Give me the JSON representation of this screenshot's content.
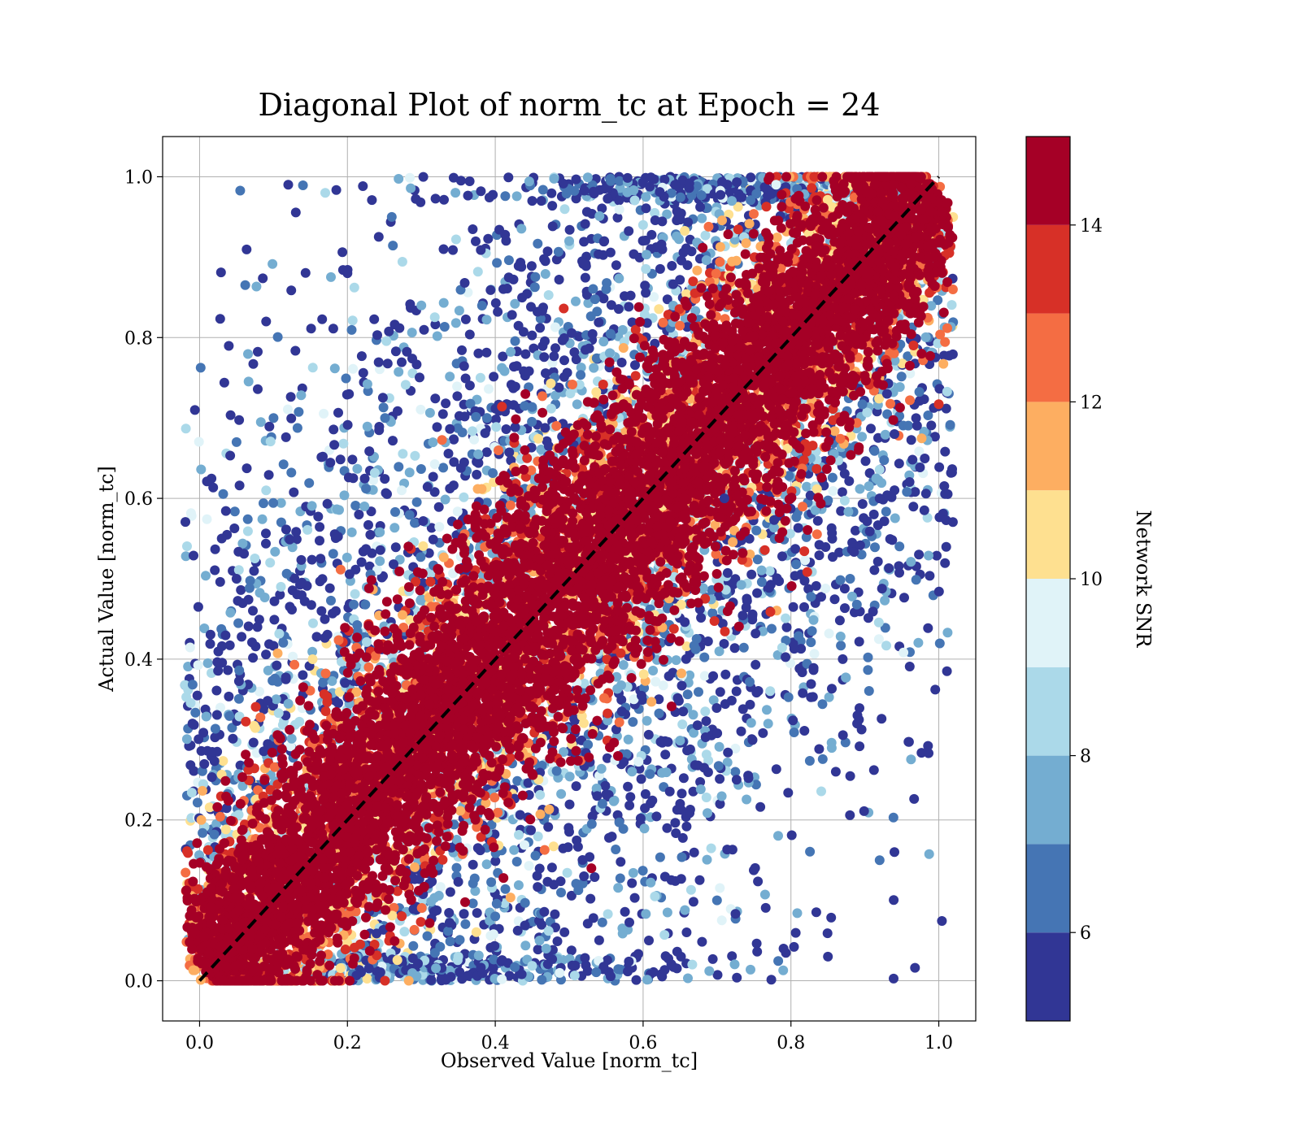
{
  "chart_data": {
    "type": "scatter",
    "title": "Diagonal Plot of norm_tc at Epoch = 24",
    "xlabel": "Observed Value [norm_tc]",
    "ylabel": "Actual Value [norm_tc]",
    "xlim": [
      -0.05,
      1.05
    ],
    "ylim": [
      -0.05,
      1.05
    ],
    "x_ticks": [
      "0.0",
      "0.2",
      "0.4",
      "0.6",
      "0.8",
      "1.0"
    ],
    "y_ticks": [
      "0.0",
      "0.2",
      "0.4",
      "0.6",
      "0.8",
      "1.0"
    ],
    "grid": true,
    "reference_line": {
      "style": "dashed",
      "color": "#000000",
      "points": [
        [
          0.0,
          0.0
        ],
        [
          1.0,
          1.0
        ]
      ]
    },
    "colorbar": {
      "label": "Network SNR",
      "range": [
        5,
        15
      ],
      "ticks": [
        "6",
        "8",
        "10",
        "12",
        "14"
      ],
      "bin_edges": [
        5,
        6,
        7,
        8,
        9,
        10,
        11,
        12,
        13,
        14,
        15
      ],
      "colors": [
        "#313695",
        "#4575b4",
        "#74add1",
        "#abd9e9",
        "#e0f3f8",
        "#fee090",
        "#fdae61",
        "#f46d43",
        "#d73027",
        "#a50026"
      ]
    },
    "description_of_points": {
      "band_center_series": "high SNR points (~15) clustered tightly along y = x",
      "scatter_series": "low SNR points (5–9) spread widely off the diagonal"
    },
    "points_sample": [
      {
        "x": 0.05,
        "y": 0.67,
        "snr": 6
      },
      {
        "x": 0.03,
        "y": 0.55,
        "snr": 5
      },
      {
        "x": 0.05,
        "y": 0.5,
        "snr": 5
      },
      {
        "x": 0.12,
        "y": 0.99,
        "snr": 5
      },
      {
        "x": 0.17,
        "y": 0.98,
        "snr": 8
      },
      {
        "x": 0.09,
        "y": 0.82,
        "snr": 5
      },
      {
        "x": 0.1,
        "y": 0.7,
        "snr": 6
      },
      {
        "x": 0.09,
        "y": 0.61,
        "snr": 8
      },
      {
        "x": 0.11,
        "y": 0.49,
        "snr": 8
      },
      {
        "x": 0.2,
        "y": 0.88,
        "snr": 5
      },
      {
        "x": 0.26,
        "y": 0.95,
        "snr": 6
      },
      {
        "x": 0.3,
        "y": 0.84,
        "snr": 7
      },
      {
        "x": 0.33,
        "y": 0.91,
        "snr": 5
      },
      {
        "x": 0.38,
        "y": 0.75,
        "snr": 8
      },
      {
        "x": 0.45,
        "y": 0.97,
        "snr": 5
      },
      {
        "x": 0.5,
        "y": 0.92,
        "snr": 7
      },
      {
        "x": 0.55,
        "y": 0.86,
        "snr": 6
      },
      {
        "x": 0.6,
        "y": 0.94,
        "snr": 8
      },
      {
        "x": 0.66,
        "y": 0.89,
        "snr": 5
      },
      {
        "x": 0.72,
        "y": 0.97,
        "snr": 7
      },
      {
        "x": 0.78,
        "y": 0.99,
        "snr": 9
      },
      {
        "x": 0.93,
        "y": 0.73,
        "snr": 5
      },
      {
        "x": 0.94,
        "y": 0.68,
        "snr": 5
      },
      {
        "x": 0.92,
        "y": 0.6,
        "snr": 5
      },
      {
        "x": 0.88,
        "y": 0.5,
        "snr": 6
      },
      {
        "x": 0.87,
        "y": 0.4,
        "snr": 5
      },
      {
        "x": 0.89,
        "y": 0.33,
        "snr": 5
      },
      {
        "x": 0.92,
        "y": 0.15,
        "snr": 6
      },
      {
        "x": 0.94,
        "y": 0.16,
        "snr": 5
      },
      {
        "x": 0.85,
        "y": 0.03,
        "snr": 5
      },
      {
        "x": 0.79,
        "y": 0.04,
        "snr": 5
      },
      {
        "x": 0.7,
        "y": 0.1,
        "snr": 6
      },
      {
        "x": 0.65,
        "y": 0.22,
        "snr": 5
      },
      {
        "x": 0.58,
        "y": 0.3,
        "snr": 7
      },
      {
        "x": 0.52,
        "y": 0.13,
        "snr": 5
      },
      {
        "x": 0.46,
        "y": 0.05,
        "snr": 7
      },
      {
        "x": 0.4,
        "y": 0.08,
        "snr": 6
      },
      {
        "x": 0.35,
        "y": 0.03,
        "snr": 8
      },
      {
        "x": 0.71,
        "y": 0.6,
        "snr": 5
      },
      {
        "x": 0.69,
        "y": 0.75,
        "snr": 15
      },
      {
        "x": 0.44,
        "y": 0.66,
        "snr": 15
      },
      {
        "x": 0.53,
        "y": 0.14,
        "snr": 15
      }
    ]
  }
}
